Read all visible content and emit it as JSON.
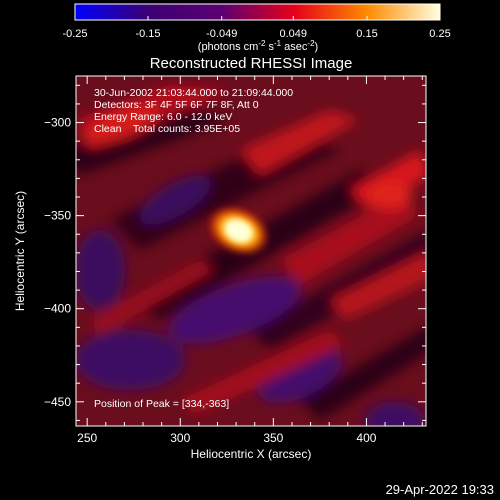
{
  "chart_data": {
    "type": "heatmap",
    "title": "Reconstructed RHESSI Image",
    "xlabel": "Heliocentric X (arcsec)",
    "ylabel": "Heliocentric Y (arcsec)",
    "xlim": [
      244,
      432
    ],
    "ylim": [
      -463,
      -275
    ],
    "x_ticks": [
      250,
      300,
      350,
      400
    ],
    "y_ticks": [
      -300,
      -350,
      -400,
      -450
    ],
    "colorbar": {
      "range": [
        -0.25,
        0.25
      ],
      "ticks": [
        "-0.25",
        "-0.15",
        "-0.049",
        "0.049",
        "0.15",
        "0.25"
      ],
      "label_prefix": "(photons cm",
      "label_exp1": "-2",
      "label_mid": " s",
      "label_exp2": "-1",
      "label_mid2": " asec",
      "label_exp3": "-2",
      "label_suffix": ")",
      "colors": [
        "#0000ff",
        "#3b0073",
        "#5a0072",
        "#e6001a",
        "#ff8a00",
        "#ffffe0"
      ]
    },
    "annotations": [
      "30-Jun-2002 21:03:44.000 to 21:09:44.000",
      "Detectors: 3F 4F 5F 6F 7F 8F, Att 0",
      "Energy Range: 6.0 - 12.0 keV",
      "Clean    Total counts: 3.95E+05"
    ],
    "peak_label": "Position of Peak = [334,-363]",
    "peak": {
      "x": 334,
      "y": -363
    },
    "timestamp": "29-Apr-2022 19:33"
  }
}
